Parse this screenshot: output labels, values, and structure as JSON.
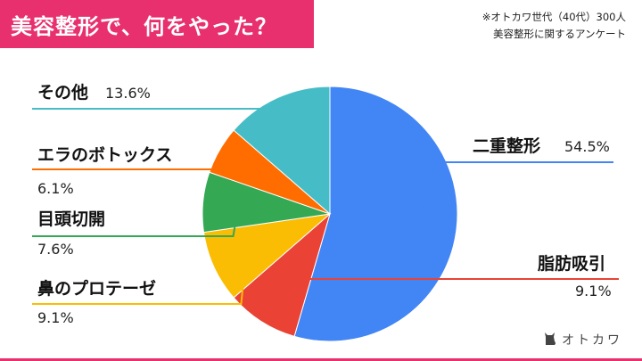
{
  "header": {
    "title": "美容整形で、何をやった？",
    "note_line1": "※オトカワ世代（40代）300人",
    "note_line2": "美容整形に関するアンケート"
  },
  "brand": {
    "name": "オトカワ",
    "icon": "cat-icon"
  },
  "colors": {
    "accent": "#e8306e"
  },
  "chart_data": {
    "type": "pie",
    "categories": [
      "二重整形",
      "脂肪吸引",
      "鼻のプロテーゼ",
      "目頭切開",
      "エラのボトックス",
      "その他"
    ],
    "values": [
      54.5,
      9.1,
      9.1,
      7.6,
      6.1,
      13.6
    ],
    "value_labels": [
      "54.5%",
      "9.1%",
      "9.1%",
      "7.6%",
      "6.1%",
      "13.6%"
    ],
    "colors": [
      "#4285f4",
      "#ea4335",
      "#fbbc04",
      "#34a853",
      "#ff6d01",
      "#46bdc6"
    ],
    "start": "12 o'clock",
    "direction": "clockwise",
    "title": "美容整形で、何をやった？"
  }
}
